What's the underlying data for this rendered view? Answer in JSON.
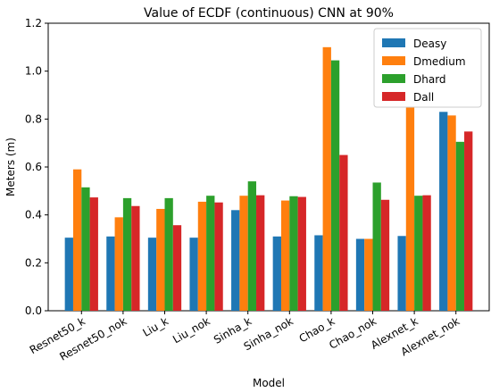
{
  "chart_data": {
    "type": "bar",
    "title": "Value of ECDF (continuous) CNN at 90%",
    "xlabel": "Model",
    "ylabel": "Meters (m)",
    "ylim": [
      0,
      1.2
    ],
    "yticks": [
      "0.0",
      "0.2",
      "0.4",
      "0.6",
      "0.8",
      "1.0",
      "1.2"
    ],
    "grid": false,
    "legend_position": "top-right",
    "categories": [
      "Resnet50_k",
      "Resnet50_nok",
      "Liu_k",
      "Liu_nok",
      "Sinha_k",
      "Sinha_nok",
      "Chao_k",
      "Chao_nok",
      "Alexnet_k",
      "Alexnet_nok"
    ],
    "series": [
      {
        "name": "Deasy",
        "color": "#1f77b4",
        "values": [
          0.305,
          0.31,
          0.305,
          0.305,
          0.42,
          0.31,
          0.315,
          0.3,
          0.312,
          0.83
        ]
      },
      {
        "name": "Dmedium",
        "color": "#ff7f0e",
        "values": [
          0.59,
          0.39,
          0.425,
          0.455,
          0.48,
          0.46,
          1.1,
          0.3,
          0.85,
          0.815
        ]
      },
      {
        "name": "Dhard",
        "color": "#2ca02c",
        "values": [
          0.515,
          0.47,
          0.47,
          0.48,
          0.54,
          0.478,
          1.045,
          0.535,
          0.48,
          0.705
        ]
      },
      {
        "name": "Dall",
        "color": "#d62728",
        "values": [
          0.473,
          0.437,
          0.357,
          0.452,
          0.482,
          0.475,
          0.65,
          0.463,
          0.482,
          0.748
        ]
      }
    ]
  }
}
